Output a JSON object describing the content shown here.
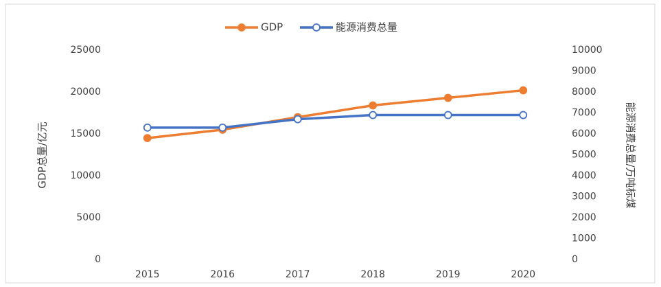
{
  "chart_data": {
    "type": "line",
    "categories": [
      "2015",
      "2016",
      "2017",
      "2018",
      "2019",
      "2020"
    ],
    "series": [
      {
        "name": "GDP",
        "color": "#ed7d31",
        "marker": "filled",
        "values": [
          14500,
          15500,
          17000,
          18400,
          19300,
          20200
        ]
      },
      {
        "name": "能源消费总量",
        "color": "#4472c4",
        "marker": "hollow",
        "axis": "y2",
        "values": [
          6300,
          6300,
          6700,
          6900,
          6900,
          6900
        ]
      }
    ],
    "y_label": "GDP总量/亿元",
    "y2_label": "能源消费总量/万吨标煤",
    "ylim": [
      0,
      25000
    ],
    "yticks": [
      0,
      5000,
      10000,
      15000,
      20000,
      25000
    ],
    "y2lim": [
      0,
      10000
    ],
    "y2ticks": [
      0,
      1000,
      2000,
      3000,
      4000,
      5000,
      6000,
      7000,
      8000,
      9000,
      10000
    ],
    "legend": "top",
    "grid": false
  }
}
